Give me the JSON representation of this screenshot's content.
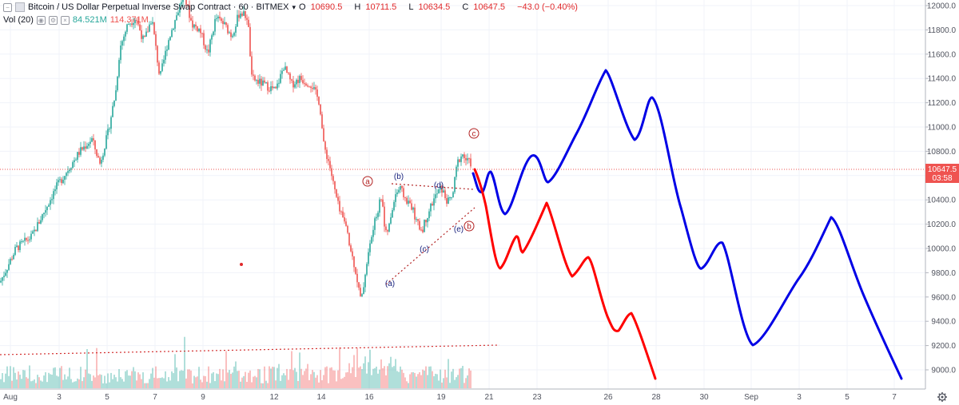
{
  "header": {
    "symbol": "Bitcoin / US Dollar Perpetual Inverse Swap Contract · 60 · BITMEX",
    "dropdown_icon": "chevron-down-icon",
    "ohlc": [
      {
        "label": "O",
        "value": "10690.5"
      },
      {
        "label": "H",
        "value": "10711.5"
      },
      {
        "label": "L",
        "value": "10634.5"
      },
      {
        "label": "C",
        "value": "10647.5"
      },
      {
        "label": "",
        "value": "−43.0 (−0.40%)"
      }
    ]
  },
  "volume": {
    "label": "Vol (20)",
    "value1": "84.521M",
    "value2": "114.371M"
  },
  "price_scale": {
    "ticks": [
      "12000.0",
      "11800.0",
      "11600.0",
      "11400.0",
      "11200.0",
      "11000.0",
      "10800.0",
      "10600.0",
      "10400.0",
      "10200.0",
      "10000.0",
      "9800.0",
      "9600.0",
      "9400.0",
      "9200.0",
      "9000.0"
    ],
    "last_price": "10647.5",
    "countdown": "03:58"
  },
  "time_scale": {
    "ticks": [
      "Aug",
      "3",
      "5",
      "7",
      "9",
      "12",
      "14",
      "16",
      "19",
      "21",
      "23",
      "26",
      "28",
      "30",
      "Sep",
      "3",
      "5",
      "7"
    ]
  },
  "wave_labels": {
    "a": "a",
    "b": "b",
    "c": "c",
    "pa": "(a)",
    "pb": "(b)",
    "pc": "(c)",
    "pd": "(d)",
    "pe": "(e)"
  },
  "colors": {
    "up": "#26a69a",
    "down": "#ef5350",
    "projection_blue": "#0000e6",
    "projection_red": "#ff0000",
    "wave_red": "#b22222",
    "wave_navy": "#1a237e",
    "last_price_bg": "#ef5350"
  },
  "settings_icon": "gear-icon"
}
